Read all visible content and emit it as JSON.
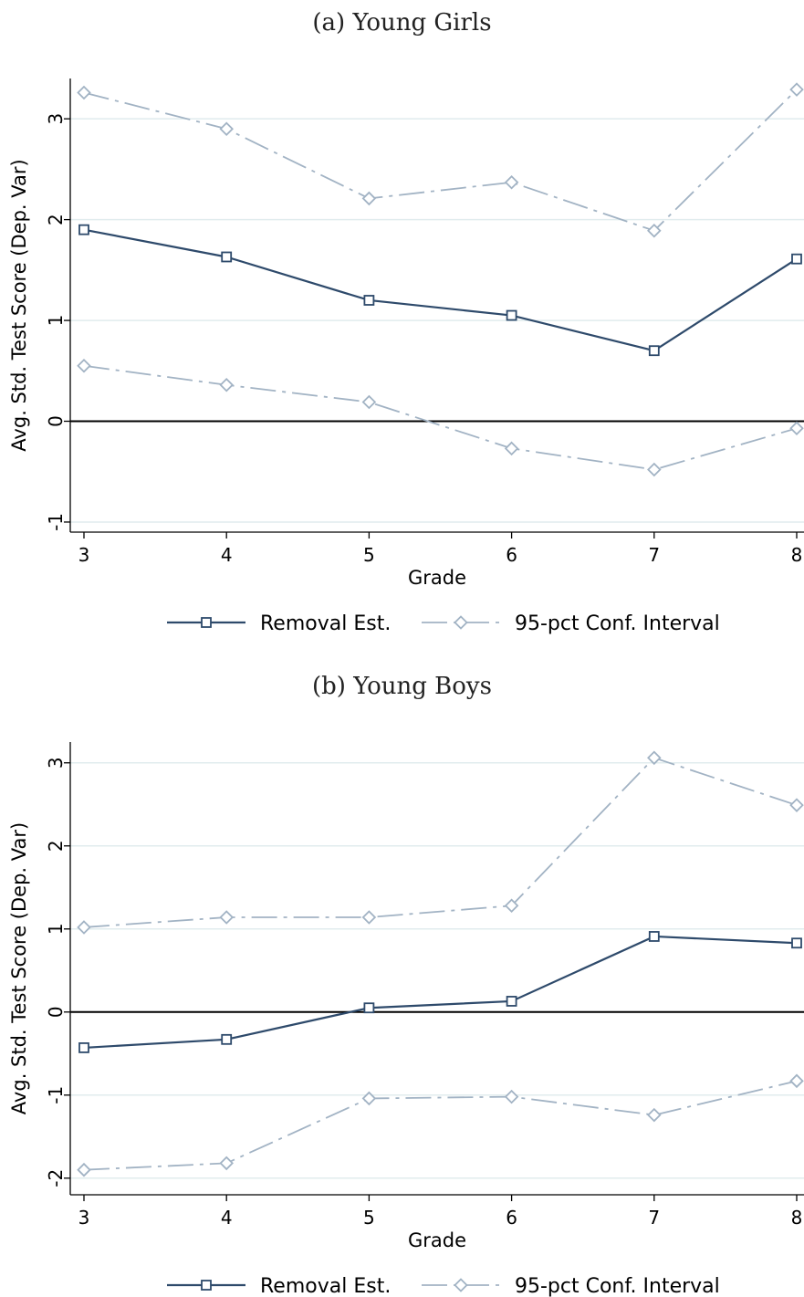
{
  "chart_data": [
    {
      "type": "line",
      "title": "(a) Young Girls",
      "xlabel": "Grade",
      "ylabel": "Avg. Std. Test Score (Dep. Var)",
      "x": [
        3,
        4,
        5,
        6,
        7,
        8
      ],
      "ylim": [
        -1.1,
        3.4
      ],
      "yticks": [
        -1,
        0,
        1,
        2,
        3
      ],
      "grid": true,
      "legend_position": "bottom",
      "series": [
        {
          "name": "Removal Est.",
          "values": [
            1.9,
            1.63,
            1.2,
            1.05,
            0.7,
            1.61
          ],
          "color": "#2e4a6b",
          "marker": "square",
          "dash": "solid"
        },
        {
          "name": "95-pct Conf. Interval",
          "role": "upper",
          "values": [
            3.26,
            2.9,
            2.21,
            2.37,
            1.89,
            3.29
          ],
          "color": "#a2b3c4",
          "marker": "diamond",
          "dash": "dashdot"
        },
        {
          "name": "95-pct Conf. Interval",
          "role": "lower",
          "values": [
            0.55,
            0.36,
            0.19,
            -0.27,
            -0.48,
            -0.07
          ],
          "color": "#a2b3c4",
          "marker": "diamond",
          "dash": "dashdot"
        }
      ]
    },
    {
      "type": "line",
      "title": "(b) Young Boys",
      "xlabel": "Grade",
      "ylabel": "Avg. Std. Test Score (Dep. Var)",
      "x": [
        3,
        4,
        5,
        6,
        7,
        8
      ],
      "ylim": [
        -2.2,
        3.25
      ],
      "yticks": [
        -2,
        -1,
        0,
        1,
        2,
        3
      ],
      "grid": true,
      "legend_position": "bottom",
      "series": [
        {
          "name": "Removal Est.",
          "values": [
            -0.43,
            -0.33,
            0.05,
            0.13,
            0.91,
            0.83
          ],
          "color": "#2e4a6b",
          "marker": "square",
          "dash": "solid"
        },
        {
          "name": "95-pct Conf. Interval",
          "role": "upper",
          "values": [
            1.02,
            1.14,
            1.14,
            1.28,
            3.06,
            2.49
          ],
          "color": "#a2b3c4",
          "marker": "diamond",
          "dash": "dashdot"
        },
        {
          "name": "95-pct Conf. Interval",
          "role": "lower",
          "values": [
            -1.9,
            -1.82,
            -1.04,
            -1.02,
            -1.24,
            -0.83
          ],
          "color": "#a2b3c4",
          "marker": "diamond",
          "dash": "dashdot"
        }
      ]
    }
  ]
}
